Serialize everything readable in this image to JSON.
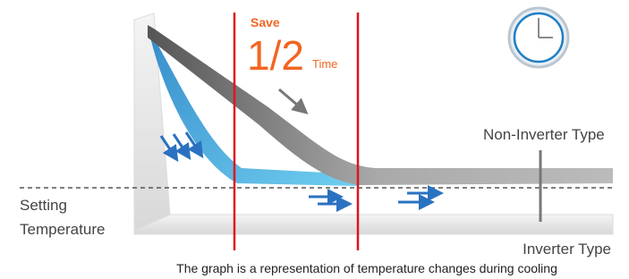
{
  "annotation": {
    "save": "Save",
    "fraction": "1/2",
    "unit": "Time"
  },
  "labels": {
    "non_inverter": "Non-Inverter Type",
    "setting_line1": "Setting",
    "setting_line2": "Temperature",
    "inverter": "Inverter Type"
  },
  "caption": "The graph is a representation of temperature changes during cooling"
}
